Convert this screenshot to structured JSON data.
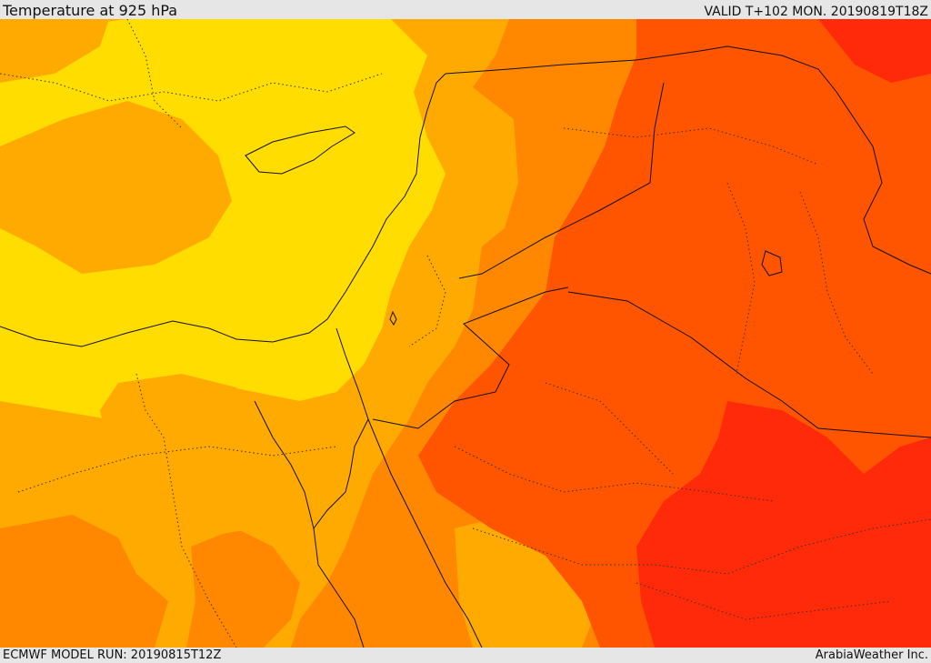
{
  "header": {
    "title": "Temperature at 925 hPa",
    "valid_time": "VALID T+102 MON. 20190819T18Z"
  },
  "footer": {
    "model_run": "ECMWF MODEL RUN: 20190815T12Z",
    "credit": "ArabiaWeather Inc."
  },
  "map": {
    "field": "Temperature at 925 hPa",
    "colors": {
      "band_1": "#ffdd00",
      "band_2": "#ffaa00",
      "band_3": "#ff8800",
      "band_4": "#ff5500",
      "band_5": "#ff2a0a",
      "coastline": "#111111",
      "border": "#111111",
      "admin_border": "#333333"
    }
  }
}
